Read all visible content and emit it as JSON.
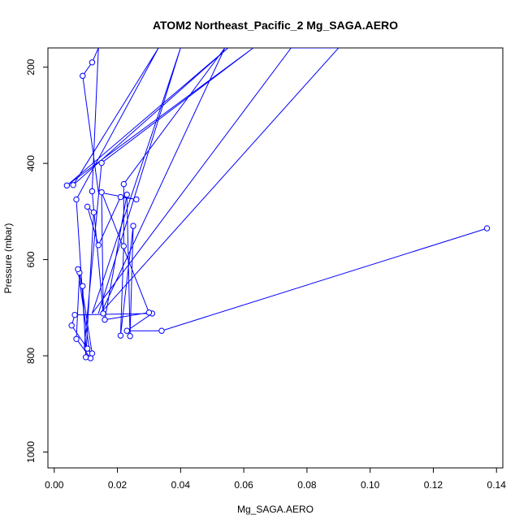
{
  "chart_data": {
    "type": "line",
    "title": "ATOM2 Northeast_Pacific_2 Mg_SAGA.AERO",
    "xlabel": "Mg_SAGA.AERO",
    "ylabel": "Pressure (mbar)",
    "xlim": [
      -0.002,
      0.142
    ],
    "ylim": [
      1033,
      160
    ],
    "y_reversed": true,
    "grid": false,
    "x_ticks": [
      0.0,
      0.02,
      0.04,
      0.06,
      0.08,
      0.1,
      0.12,
      0.14
    ],
    "x_tick_labels": [
      "0.00",
      "0.02",
      "0.04",
      "0.06",
      "0.08",
      "0.10",
      "0.12",
      "0.14"
    ],
    "y_ticks": [
      200,
      400,
      600,
      800,
      1000
    ],
    "y_tick_labels": [
      "200",
      "400",
      "600",
      "800",
      "1000"
    ],
    "series_color": "#0000ff",
    "series": [
      {
        "points": [
          [
            0.137,
            535
          ],
          [
            0.034,
            748
          ],
          [
            0.023,
            748
          ],
          [
            0.031,
            712
          ],
          [
            0.0065,
            715
          ],
          [
            0.0055,
            737
          ],
          [
            0.0105,
            785
          ],
          [
            0.01,
            782
          ],
          [
            0.007,
            475
          ],
          [
            0.033,
            160
          ],
          [
            0.006,
            445
          ],
          [
            0.055,
            160
          ],
          [
            0.004,
            446
          ],
          [
            0.063,
            160
          ],
          [
            0.015,
            399
          ],
          [
            0.0095,
            783
          ],
          [
            0.012,
            795
          ],
          [
            0.008,
            627
          ],
          [
            0.007,
            765
          ],
          [
            0.0115,
            805
          ],
          [
            0.0075,
            620
          ],
          [
            0.009,
            655
          ],
          [
            0.01,
            803
          ],
          [
            0.0125,
            502
          ],
          [
            0.0105,
            490
          ],
          [
            0.014,
            570
          ],
          [
            0.021,
            470
          ],
          [
            0.026,
            475
          ],
          [
            0.014,
            460
          ],
          [
            0.009,
            218
          ],
          [
            0.012,
            190
          ],
          [
            0.014,
            160
          ],
          [
            0.012,
            458
          ],
          [
            0.0155,
            712
          ],
          [
            0.015,
            460
          ],
          [
            0.03,
            710
          ],
          [
            0.016,
            725
          ],
          [
            0.023,
            465
          ],
          [
            0.024,
            759
          ],
          [
            0.025,
            530
          ],
          [
            0.021,
            758
          ],
          [
            0.022,
            572
          ],
          [
            0.022,
            443
          ],
          [
            0.054,
            160
          ],
          [
            0.015,
            709
          ],
          [
            0.09,
            160
          ],
          [
            0.075,
            160
          ],
          [
            0.012,
            712
          ],
          [
            0.04,
            160
          ],
          [
            0.014,
            712
          ]
        ],
        "open_markers": [
          [
            0.137,
            535
          ],
          [
            0.034,
            748
          ],
          [
            0.023,
            748
          ],
          [
            0.031,
            712
          ],
          [
            0.0065,
            715
          ],
          [
            0.0055,
            737
          ],
          [
            0.0105,
            785
          ],
          [
            0.007,
            475
          ],
          [
            0.006,
            445
          ],
          [
            0.004,
            446
          ],
          [
            0.015,
            399
          ],
          [
            0.012,
            795
          ],
          [
            0.008,
            627
          ],
          [
            0.007,
            765
          ],
          [
            0.0115,
            805
          ],
          [
            0.0075,
            620
          ],
          [
            0.009,
            655
          ],
          [
            0.01,
            803
          ],
          [
            0.0125,
            502
          ],
          [
            0.0105,
            490
          ],
          [
            0.014,
            570
          ],
          [
            0.021,
            470
          ],
          [
            0.026,
            475
          ],
          [
            0.009,
            218
          ],
          [
            0.012,
            190
          ],
          [
            0.012,
            458
          ],
          [
            0.0155,
            712
          ],
          [
            0.015,
            460
          ],
          [
            0.03,
            710
          ],
          [
            0.016,
            725
          ],
          [
            0.023,
            465
          ],
          [
            0.024,
            759
          ],
          [
            0.025,
            530
          ],
          [
            0.021,
            758
          ],
          [
            0.022,
            572
          ],
          [
            0.022,
            443
          ]
        ]
      }
    ]
  }
}
